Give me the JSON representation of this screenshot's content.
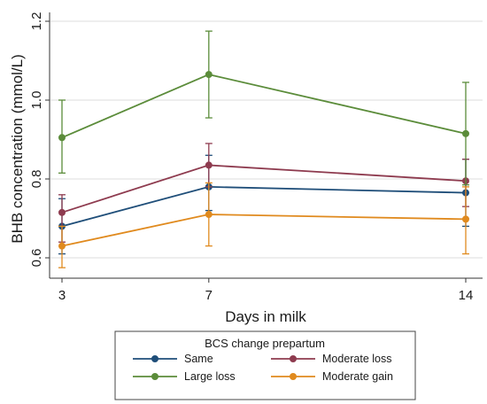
{
  "chart_data": {
    "type": "line",
    "title": "",
    "xlabel": "Days in milk",
    "ylabel": "BHB concentration (mmol/L)",
    "x": [
      3,
      7,
      14
    ],
    "x_tick_labels": [
      "3",
      "7",
      "14"
    ],
    "y_ticks": [
      0.6,
      0.8,
      1.0,
      1.2
    ],
    "y_tick_labels": [
      "0.6",
      "0.8",
      "1.0",
      "1.2"
    ],
    "ylim": [
      0.58,
      1.22
    ],
    "grid": "horizontal",
    "legend": {
      "title": "BCS change prepartum",
      "placement": "bottom"
    },
    "series": [
      {
        "name": "Same",
        "color": "#1f4e79",
        "values": [
          0.68,
          0.78,
          0.765
        ],
        "lower": [
          0.61,
          0.72,
          0.68
        ],
        "upper": [
          0.75,
          0.86,
          0.85
        ]
      },
      {
        "name": "Moderate loss",
        "color": "#8e3b4f",
        "values": [
          0.715,
          0.835,
          0.795
        ],
        "lower": [
          0.64,
          0.78,
          0.73
        ],
        "upper": [
          0.76,
          0.89,
          0.85
        ]
      },
      {
        "name": "Large loss",
        "color": "#5b8c3a",
        "values": [
          0.905,
          1.065,
          0.915
        ],
        "lower": [
          0.815,
          0.955,
          0.785
        ],
        "upper": [
          1.0,
          1.175,
          1.045
        ]
      },
      {
        "name": "Moderate gain",
        "color": "#e08a1e",
        "values": [
          0.63,
          0.71,
          0.698
        ],
        "lower": [
          0.575,
          0.63,
          0.61
        ],
        "upper": [
          0.68,
          0.79,
          0.78
        ]
      }
    ]
  }
}
